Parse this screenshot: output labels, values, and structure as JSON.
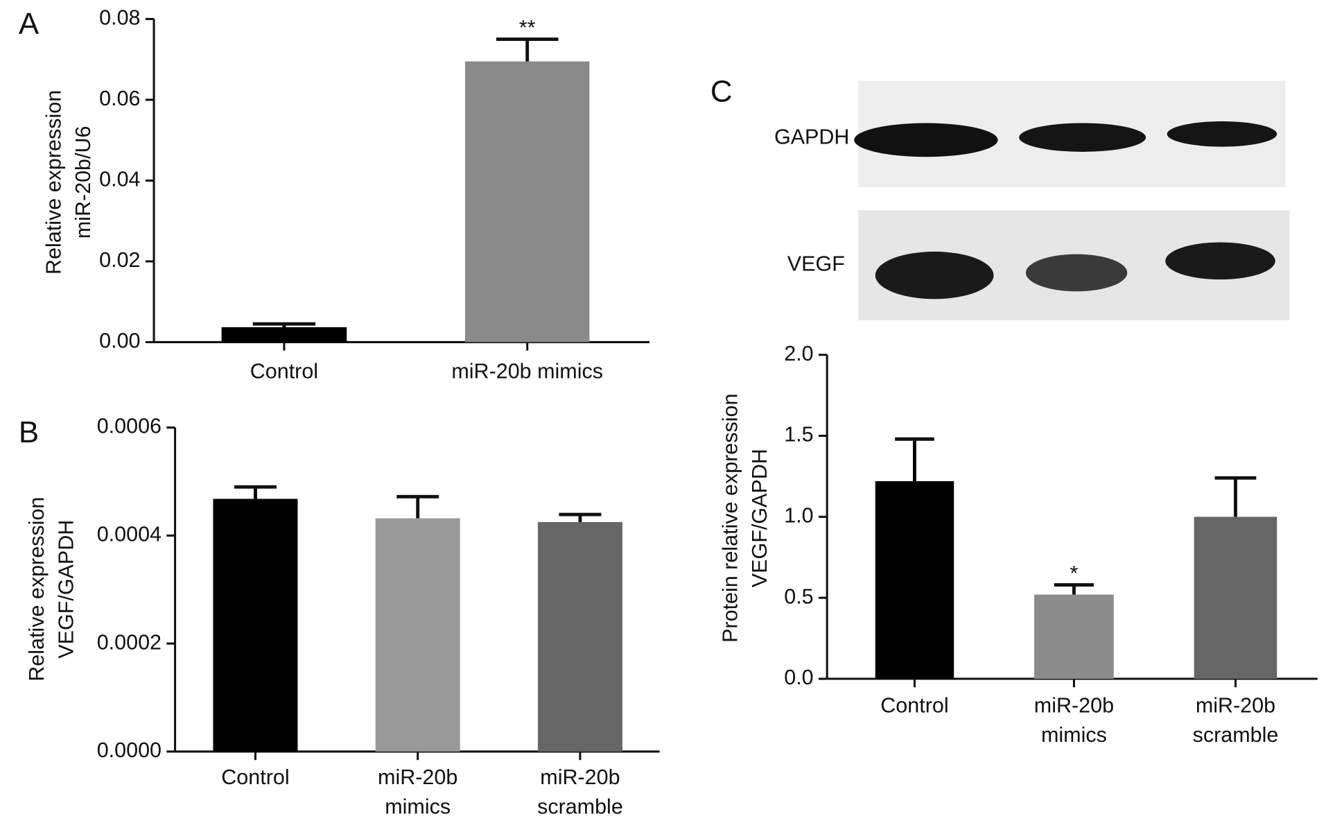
{
  "chart_data": [
    {
      "type": "bar",
      "panel": "A",
      "ylabel": [
        "Relative expression",
        "miR-20b/U6"
      ],
      "categories": [
        [
          "Control"
        ],
        [
          "miR-20b mimics"
        ]
      ],
      "values": [
        0.0037,
        0.0695
      ],
      "errors": [
        0.0008,
        0.0055
      ],
      "colors": [
        "#000000",
        "#8a8a8a"
      ],
      "annotations": [
        null,
        "**"
      ],
      "ylim": [
        0,
        0.08
      ],
      "yticks": [
        {
          "value": 0,
          "label": "0.00"
        },
        {
          "value": 0.02,
          "label": "0.02"
        },
        {
          "value": 0.04,
          "label": "0.04"
        },
        {
          "value": 0.06,
          "label": "0.06"
        },
        {
          "value": 0.08,
          "label": "0.08"
        }
      ]
    },
    {
      "type": "bar",
      "panel": "B",
      "ylabel": [
        "Relative expression",
        "VEGF/GAPDH"
      ],
      "categories": [
        [
          "Control"
        ],
        [
          "miR-20b",
          "mimics"
        ],
        [
          "miR-20b",
          "scramble"
        ]
      ],
      "values": [
        0.000468,
        0.000432,
        0.000425
      ],
      "errors": [
        2.2e-05,
        4e-05,
        1.4e-05
      ],
      "colors": [
        "#000000",
        "#999999",
        "#666666"
      ],
      "ylim": [
        0,
        0.0006
      ],
      "yticks": [
        {
          "value": 0,
          "label": "0.0000"
        },
        {
          "value": 0.0002,
          "label": "0.0002"
        },
        {
          "value": 0.0004,
          "label": "0.0004"
        },
        {
          "value": 0.0006,
          "label": "0.0006"
        }
      ]
    },
    {
      "type": "bar",
      "panel": "C",
      "blot_rows": [
        "GAPDH",
        "VEGF"
      ],
      "ylabel": [
        "Protein relative expression",
        "VEGF/GAPDH"
      ],
      "categories": [
        [
          "Control"
        ],
        [
          "miR-20b",
          "mimics"
        ],
        [
          "miR-20b",
          "scramble"
        ]
      ],
      "values": [
        1.22,
        0.52,
        1.0
      ],
      "errors": [
        0.26,
        0.06,
        0.24
      ],
      "colors": [
        "#000000",
        "#8c8c8c",
        "#666666"
      ],
      "annotations": [
        null,
        "*",
        null
      ],
      "ylim": [
        0,
        2
      ],
      "yticks": [
        {
          "value": 0,
          "label": "0.0"
        },
        {
          "value": 0.5,
          "label": "0.5"
        },
        {
          "value": 1,
          "label": "1.0"
        },
        {
          "value": 1.5,
          "label": "1.5"
        },
        {
          "value": 2,
          "label": "2.0"
        }
      ]
    }
  ]
}
